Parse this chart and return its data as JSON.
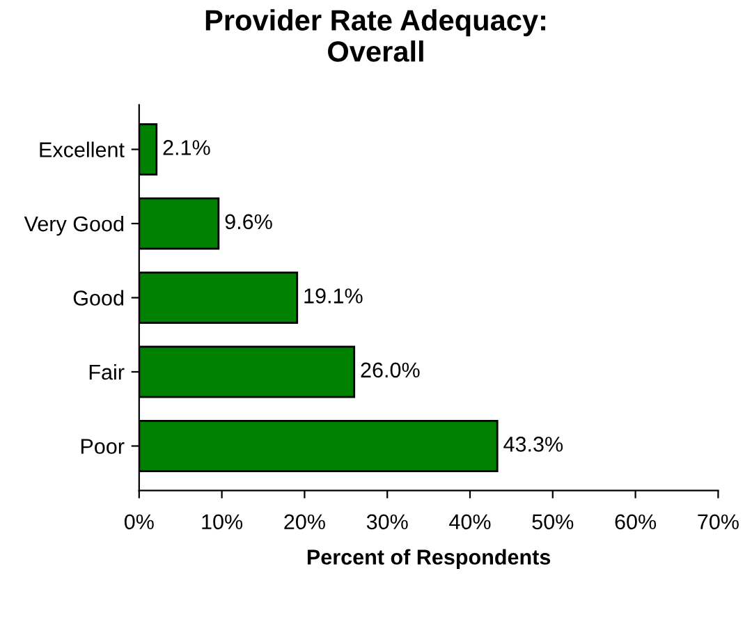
{
  "chart_data": {
    "type": "bar",
    "orientation": "horizontal",
    "title": "Provider Rate Adequacy:\nOverall",
    "xlabel": "Percent of Respondents",
    "categories": [
      "Excellent",
      "Very Good",
      "Good",
      "Fair",
      "Poor"
    ],
    "values": [
      2.1,
      9.6,
      19.1,
      26.0,
      43.3
    ],
    "value_labels": [
      "2.1%",
      "9.6%",
      "19.1%",
      "26.0%",
      "43.3%"
    ],
    "color": "#008000",
    "xlim": [
      0,
      70
    ],
    "xticks": [
      {
        "value": 0,
        "label": "0%"
      },
      {
        "value": 10,
        "label": "10%"
      },
      {
        "value": 20,
        "label": "20%"
      },
      {
        "value": 30,
        "label": "30%"
      },
      {
        "value": 40,
        "label": "40%"
      },
      {
        "value": 50,
        "label": "50%"
      },
      {
        "value": 60,
        "label": "60%"
      },
      {
        "value": 70,
        "label": "70%"
      }
    ],
    "grid": false,
    "legend": false
  }
}
